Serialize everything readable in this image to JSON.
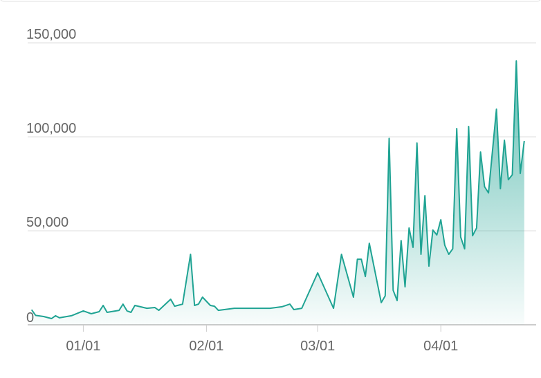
{
  "chart_data": {
    "type": "area",
    "x": [
      "12/19",
      "12/20",
      "12/22",
      "12/24",
      "12/25",
      "12/26",
      "12/29",
      "01/01",
      "01/03",
      "01/05",
      "01/06",
      "01/07",
      "01/10",
      "01/11",
      "01/12",
      "01/13",
      "01/14",
      "01/17",
      "01/19",
      "01/20",
      "01/23",
      "01/24",
      "01/26",
      "01/28",
      "01/29",
      "01/30",
      "01/31",
      "02/02",
      "02/03",
      "02/04",
      "02/08",
      "02/17",
      "02/20",
      "02/22",
      "02/23",
      "02/25",
      "03/01",
      "03/05",
      "03/07",
      "03/10",
      "03/11",
      "03/12",
      "03/13",
      "03/14",
      "03/17",
      "03/18",
      "03/19",
      "03/20",
      "03/21",
      "03/22",
      "03/23",
      "03/24",
      "03/25",
      "03/26",
      "03/27",
      "03/28",
      "03/29",
      "03/30",
      "03/31",
      "04/01",
      "04/02",
      "04/03",
      "04/04",
      "04/05",
      "04/06",
      "04/07",
      "04/08",
      "04/09",
      "04/10",
      "04/11",
      "04/12",
      "04/13",
      "04/15",
      "04/16",
      "04/17",
      "04/18",
      "04/19",
      "04/20",
      "04/21",
      "04/22"
    ],
    "values": [
      8000,
      5000,
      4400,
      3300,
      4800,
      3700,
      4800,
      7400,
      5900,
      7000,
      10300,
      6600,
      7700,
      11000,
      7400,
      6600,
      10300,
      8800,
      9200,
      7700,
      13600,
      9900,
      11000,
      37500,
      10300,
      11000,
      14700,
      10300,
      9900,
      7700,
      8800,
      8800,
      9600,
      11000,
      8100,
      8800,
      27600,
      8800,
      37500,
      14700,
      34900,
      34900,
      25700,
      43400,
      11800,
      15400,
      99200,
      18400,
      12900,
      44800,
      20200,
      51500,
      41200,
      96700,
      37500,
      68700,
      31200,
      50400,
      47800,
      55900,
      42300,
      37500,
      40400,
      104400,
      46700,
      40400,
      105500,
      47400,
      51500,
      91900,
      73500,
      70200,
      114700,
      72400,
      98200,
      77200,
      79800,
      140400,
      80500,
      97800
    ],
    "color": "#1fa393",
    "xlim": [
      "12/18",
      "04/25"
    ],
    "xticks": [
      "01/01",
      "02/01",
      "03/01",
      "04/01"
    ],
    "ylim": [
      0,
      150000
    ],
    "yticks": [
      0,
      {
        "value": 50000,
        "label": "50,000"
      },
      {
        "value": 100000,
        "label": "100,000"
      },
      {
        "value": 150000,
        "label": "150,000"
      }
    ],
    "grid": true
  }
}
